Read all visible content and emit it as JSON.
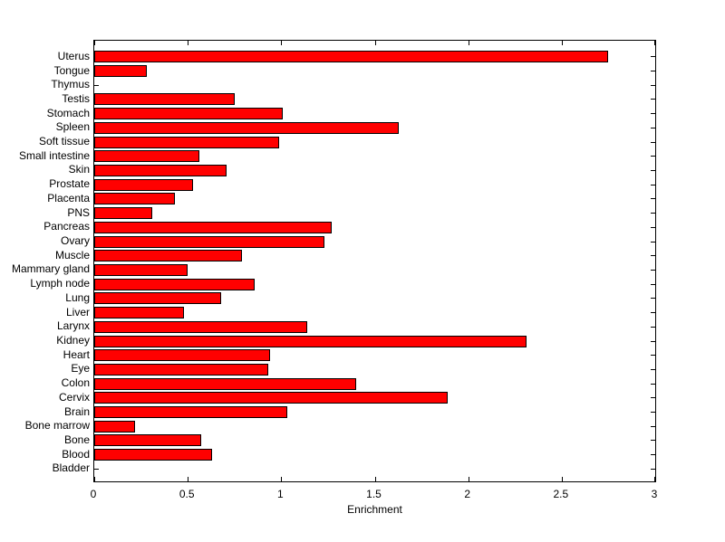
{
  "chart_data": {
    "type": "bar",
    "orientation": "horizontal",
    "title": "",
    "xlabel": "Enrichment",
    "ylabel": "",
    "xlim": [
      0,
      3
    ],
    "xticks": [
      0,
      0.5,
      1,
      1.5,
      2,
      2.5,
      3
    ],
    "xtick_labels": [
      "0",
      "0.5",
      "1",
      "1.5",
      "2",
      "2.5",
      "3"
    ],
    "grid": false,
    "legend": "none",
    "bar_color": "#FF0000",
    "bar_edge_color": "#000000",
    "axis_color": "#000000",
    "background_color": "#FFFFFF",
    "categories": [
      "Uterus",
      "Tongue",
      "Thymus",
      "Testis",
      "Stomach",
      "Spleen",
      "Soft tissue",
      "Small intestine",
      "Skin",
      "Prostate",
      "Placenta",
      "PNS",
      "Pancreas",
      "Ovary",
      "Muscle",
      "Mammary gland",
      "Lymph node",
      "Lung",
      "Liver",
      "Larynx",
      "Kidney",
      "Heart",
      "Eye",
      "Colon",
      "Cervix",
      "Brain",
      "Bone marrow",
      "Bone",
      "Blood",
      "Bladder"
    ],
    "values": [
      2.75,
      0.28,
      0,
      0.75,
      1.01,
      1.63,
      0.99,
      0.56,
      0.71,
      0.53,
      0.43,
      0.31,
      1.27,
      1.23,
      0.79,
      0.5,
      0.86,
      0.68,
      0.48,
      1.14,
      2.31,
      0.94,
      0.93,
      1.4,
      1.89,
      1.03,
      0.22,
      0.57,
      0.63,
      0
    ]
  }
}
